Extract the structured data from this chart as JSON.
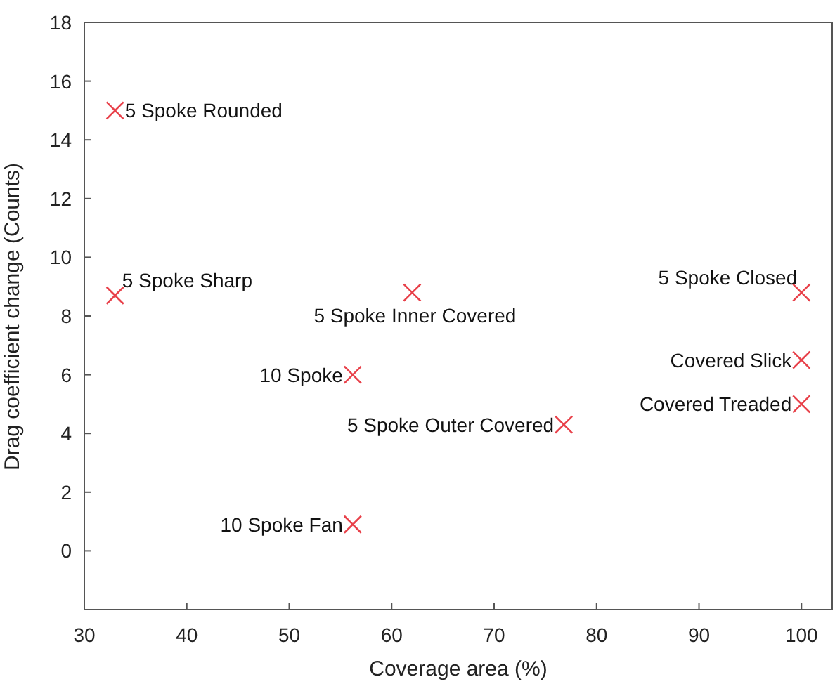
{
  "chart_data": {
    "type": "scatter",
    "xlabel": "Coverage area (%)",
    "ylabel": "Drag coefficient change (Counts)",
    "x": [
      33,
      33,
      62,
      56.2,
      76.8,
      56.2,
      100,
      100,
      100
    ],
    "series": [
      {
        "color": "#e8414a",
        "values": [
          15,
          8.7,
          8.8,
          6,
          4.3,
          0.9,
          8.8,
          6.5,
          5
        ]
      }
    ],
    "annotations": [
      {
        "text": "5 Spoke Rounded",
        "x": 33,
        "y": 15
      },
      {
        "text": "5 Spoke Sharp",
        "x": 33,
        "y": 8.7
      },
      {
        "text": "5 Spoke Inner Covered",
        "x": 62,
        "y": 8.8
      },
      {
        "text": "10 Spoke",
        "x": 56.2,
        "y": 6
      },
      {
        "text": "5 Spoke Outer Covered",
        "x": 76.8,
        "y": 4.3
      },
      {
        "text": "10 Spoke Fan",
        "x": 56.2,
        "y": 0.9
      },
      {
        "text": "5 Spoke Closed",
        "x": 100,
        "y": 8.8
      },
      {
        "text": "Covered Slick",
        "x": 100,
        "y": 6.5
      },
      {
        "text": "Covered Treaded",
        "x": 100,
        "y": 5
      }
    ],
    "xlim": [
      30,
      103
    ],
    "xticks": [
      30,
      40,
      50,
      60,
      70,
      80,
      90,
      100
    ],
    "ylim": [
      -2,
      18
    ],
    "yticks": [
      0,
      2,
      4,
      6,
      8,
      10,
      12,
      14,
      16,
      18
    ],
    "grid": false,
    "legend": false,
    "marker": "cross"
  }
}
